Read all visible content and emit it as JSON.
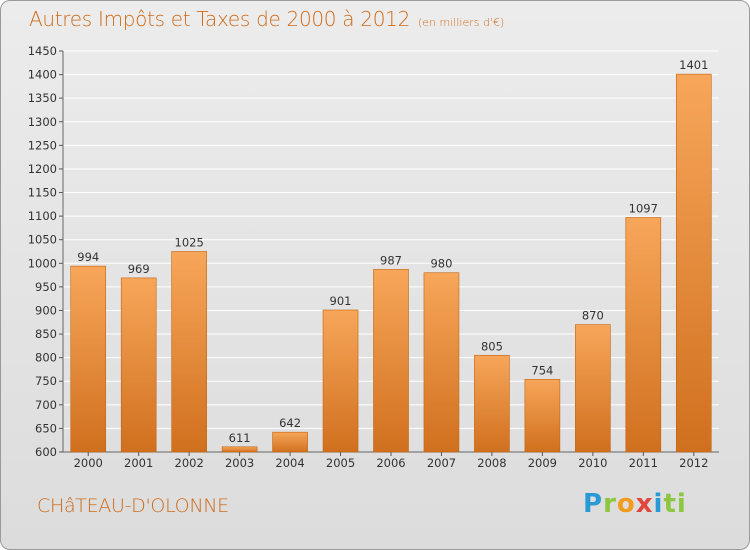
{
  "header": {
    "title": "Autres Impôts et Taxes de 2000 à 2012",
    "unit": "(en milliers d'€)"
  },
  "footer": {
    "city": "CHâTEAU-D'OLONNE",
    "logo": "Proxiti",
    "logo_letters": [
      "P",
      "r",
      "o",
      "x",
      "i",
      "ti"
    ]
  },
  "colors": {
    "bar_light": "#f7a65a",
    "bar_dark": "#d0701e",
    "title": "#cf6a18",
    "grid": "#ffffff"
  },
  "chart_data": {
    "type": "bar",
    "title": "Autres Impôts et Taxes de 2000 à 2012",
    "subtitle": "(en milliers d'€)",
    "xlabel": "",
    "ylabel": "",
    "categories": [
      "2000",
      "2001",
      "2002",
      "2003",
      "2004",
      "2005",
      "2006",
      "2007",
      "2008",
      "2009",
      "2010",
      "2011",
      "2012"
    ],
    "values": [
      994,
      969,
      1025,
      611,
      642,
      901,
      987,
      980,
      805,
      754,
      870,
      1097,
      1401
    ],
    "ylim": [
      600,
      1450
    ],
    "yticks": [
      600,
      650,
      700,
      750,
      800,
      850,
      900,
      950,
      1000,
      1050,
      1100,
      1150,
      1200,
      1250,
      1300,
      1350,
      1400,
      1450
    ],
    "grid": true,
    "legend": "none"
  }
}
